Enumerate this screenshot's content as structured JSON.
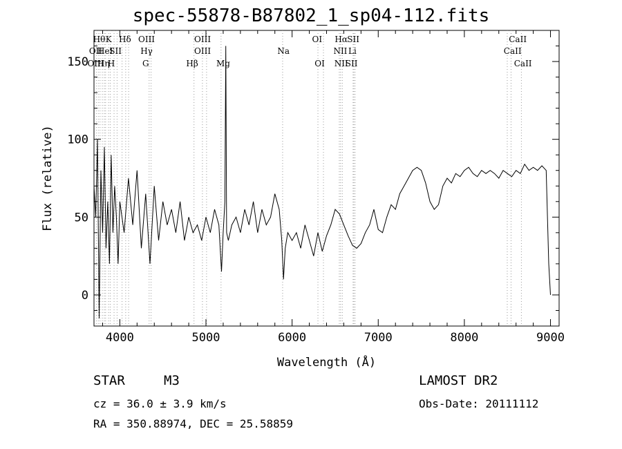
{
  "chart_data": {
    "type": "line",
    "title": "spec-55878-B87802_1_sp04-112.fits",
    "xlabel": "Wavelength (Å)",
    "ylabel": "Flux (relative)",
    "xlim": [
      3700,
      9100
    ],
    "ylim": [
      -20,
      170
    ],
    "xticks": [
      "4000",
      "5000",
      "6000",
      "7000",
      "8000",
      "9000"
    ],
    "yticks": [
      "0",
      "50",
      "100",
      "150"
    ],
    "grid": false,
    "series": [
      {
        "x": [
          3700,
          3720,
          3740,
          3760,
          3780,
          3800,
          3820,
          3840,
          3860,
          3880,
          3900,
          3920,
          3940,
          3960,
          3980,
          4000,
          4050,
          4100,
          4150,
          4200,
          4250,
          4300,
          4350,
          4400,
          4450,
          4500,
          4550,
          4600,
          4650,
          4700,
          4750,
          4800,
          4850,
          4900,
          4950,
          5000,
          5050,
          5100,
          5150,
          5180,
          5200,
          5220,
          5230,
          5240,
          5260,
          5300,
          5350,
          5400,
          5450,
          5500,
          5550,
          5600,
          5650,
          5700,
          5750,
          5800,
          5850,
          5880,
          5900,
          5920,
          5950,
          6000,
          6050,
          6100,
          6150,
          6200,
          6250,
          6300,
          6350,
          6400,
          6450,
          6500,
          6550,
          6600,
          6650,
          6700,
          6750,
          6800,
          6850,
          6900,
          6950,
          7000,
          7050,
          7100,
          7150,
          7200,
          7250,
          7300,
          7350,
          7400,
          7450,
          7500,
          7550,
          7600,
          7650,
          7700,
          7750,
          7800,
          7850,
          7900,
          7950,
          8000,
          8050,
          8100,
          8150,
          8200,
          8250,
          8300,
          8350,
          8400,
          8450,
          8500,
          8550,
          8600,
          8650,
          8700,
          8750,
          8800,
          8850,
          8900,
          8950,
          8980,
          9000
        ],
        "values": [
          70,
          50,
          100,
          -15,
          80,
          40,
          95,
          30,
          60,
          20,
          90,
          40,
          70,
          50,
          20,
          60,
          40,
          75,
          45,
          80,
          30,
          65,
          20,
          70,
          35,
          60,
          45,
          55,
          40,
          60,
          35,
          50,
          40,
          45,
          35,
          50,
          40,
          55,
          45,
          15,
          40,
          60,
          160,
          40,
          35,
          45,
          50,
          40,
          55,
          45,
          60,
          40,
          55,
          45,
          50,
          65,
          55,
          35,
          10,
          30,
          40,
          35,
          40,
          30,
          45,
          35,
          25,
          40,
          28,
          38,
          45,
          55,
          52,
          45,
          38,
          32,
          30,
          33,
          40,
          45,
          55,
          42,
          40,
          50,
          58,
          55,
          65,
          70,
          75,
          80,
          82,
          80,
          72,
          60,
          55,
          58,
          70,
          75,
          72,
          78,
          76,
          80,
          82,
          78,
          76,
          80,
          78,
          80,
          78,
          75,
          80,
          78,
          76,
          80,
          78,
          84,
          80,
          82,
          80,
          83,
          80,
          20,
          0
        ],
        "line_labels": {
          "top": [
            "Hθ",
            "K",
            "Hδ",
            "OIII",
            "OIII",
            "OI",
            "Hα",
            "SII",
            "CaII"
          ],
          "middle": [
            "OII",
            "HeI",
            "SII",
            "Hγ",
            "OIII",
            "Na",
            "NII",
            "Li",
            "CaII"
          ],
          "bottom": [
            "OIII",
            "Hη",
            "H",
            "G",
            "Hβ",
            "Mg",
            "OI",
            "NII",
            "SII",
            "CaII"
          ]
        }
      }
    ]
  },
  "footer": {
    "object_class": "STAR",
    "subclass": "M3",
    "cz": "cz = 36.0 ± 3.9 km/s",
    "coords": "RA = 350.88974, DEC =  25.58859",
    "survey": "LAMOST DR2",
    "obs_date": "Obs-Date: 20111112"
  }
}
